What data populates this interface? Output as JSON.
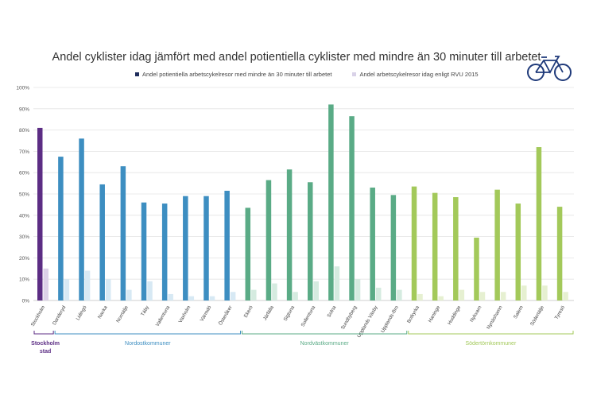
{
  "chart_data": {
    "type": "bar",
    "title": "Andel cyklister idag jämfört med andel potientiella cyklister med mindre än 30 minuter till arbetet",
    "ylim": [
      0,
      100
    ],
    "yticks": [
      "0%",
      "10%",
      "20%",
      "30%",
      "40%",
      "50%",
      "60%",
      "70%",
      "80%",
      "90%",
      "100%"
    ],
    "grid": true,
    "legend_position": "top",
    "categories": [
      "Stockholm",
      "Danderyd",
      "Lidingö",
      "Nacka",
      "Norrtälje",
      "Täby",
      "Vallentuna",
      "Vaxholm",
      "Värmdö",
      "Österåker",
      "Ekerö",
      "Järfälla",
      "Sigtuna",
      "Sollentuna",
      "Solna",
      "Sundbyberg",
      "Upplands Väsby",
      "Upplands-Bro",
      "Botkyrka",
      "Haninge",
      "Huddinge",
      "Nykvarn",
      "Nynäshamn",
      "Salem",
      "Södertälje",
      "Tyresö"
    ],
    "series": [
      {
        "name": "Andel potientiella arbetscykelresor med mindre än 30 minuter till arbetet",
        "values": [
          81,
          67.5,
          76,
          54.5,
          63,
          46,
          45.5,
          49,
          49,
          51.5,
          43.5,
          56.5,
          61.5,
          55.5,
          92,
          86.5,
          53,
          49.5,
          53.5,
          50.5,
          48.5,
          29.5,
          52,
          45.5,
          72,
          44
        ]
      },
      {
        "name": "Andel arbetscykelresor idag enligt RVU 2015",
        "values": [
          15,
          10,
          14,
          10,
          5,
          9,
          3,
          2,
          2,
          4,
          5,
          8,
          4,
          9,
          16,
          10,
          6,
          5,
          3,
          2,
          5,
          4,
          4,
          7,
          7,
          4
        ]
      }
    ],
    "groups": [
      {
        "label": "Stockholm stad",
        "start": 0,
        "end": 0,
        "color": "#5c2d84",
        "light": "#dcd1e8"
      },
      {
        "label": "Nordostkommuner",
        "start": 1,
        "end": 9,
        "color": "#3d8ec1",
        "light": "#d7e9f4"
      },
      {
        "label": "Nordvästkommuner",
        "start": 10,
        "end": 17,
        "color": "#5aab86",
        "light": "#d5ebe0"
      },
      {
        "label": "Södertörnkommuner",
        "start": 18,
        "end": 25,
        "color": "#a3c95a",
        "light": "#e6f0d1"
      }
    ],
    "legend_colors": [
      "#1f2d5c",
      "#d9d2e8"
    ]
  },
  "icons": {
    "bike": "bicycle-icon"
  }
}
